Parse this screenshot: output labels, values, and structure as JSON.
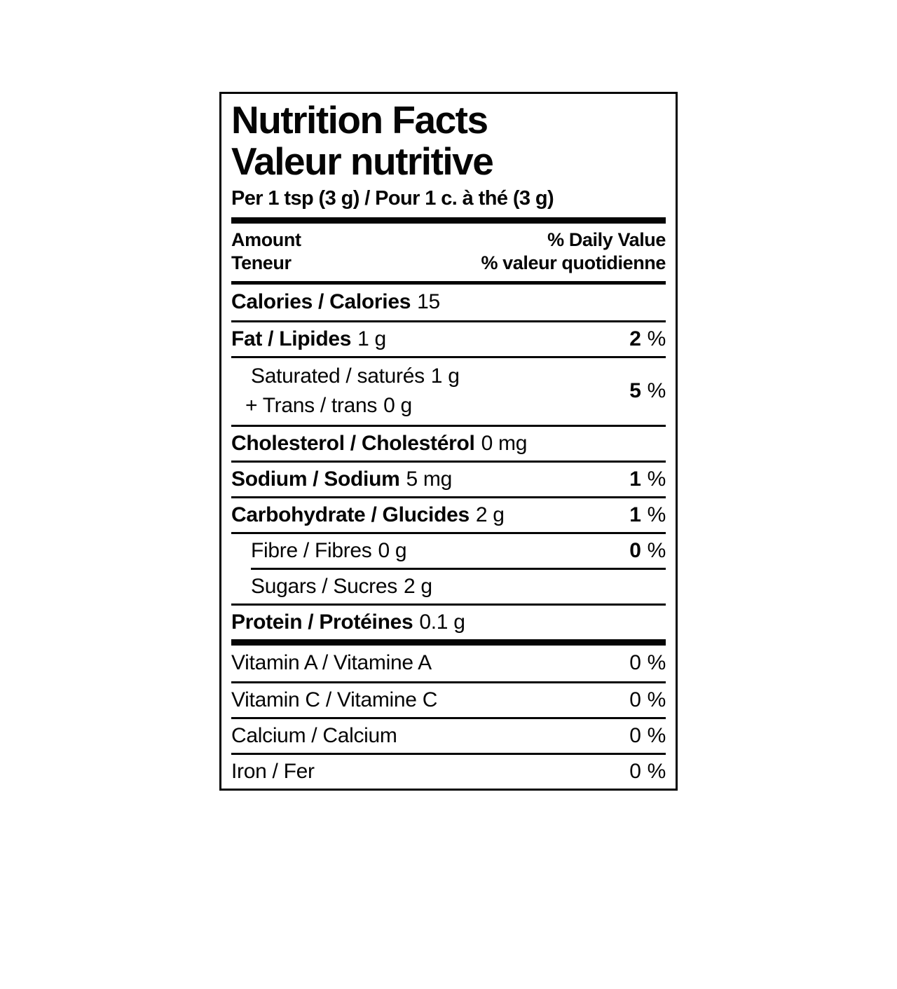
{
  "percent_sign": "%",
  "label": {
    "title_en": "Nutrition Facts",
    "title_fr": "Valeur nutritive",
    "serving": "Per 1 tsp (3 g) / Pour 1 c. à thé (3 g)",
    "columns": {
      "amount_en": "Amount",
      "amount_fr": "Teneur",
      "daily_value_en": "% Daily Value",
      "daily_value_fr": "% valeur quotidienne"
    },
    "main_rows": [
      {
        "label": "Calories / Calories",
        "value": "15",
        "dv": ""
      },
      {
        "label": "Fat / Lipides",
        "value": "1 g",
        "dv": "2"
      },
      {
        "label": "Saturated / saturés",
        "value": "1 g",
        "label2": "+ Trans / trans",
        "value2": "0 g",
        "dv": "5"
      },
      {
        "label": "Cholesterol / Cholestérol",
        "value": "0 mg",
        "dv": ""
      },
      {
        "label": "Sodium / Sodium",
        "value": "5 mg",
        "dv": "1"
      },
      {
        "label": "Carbohydrate / Glucides",
        "value": "2 g",
        "dv": "1"
      },
      {
        "label": "Fibre / Fibres",
        "value": "0 g",
        "dv": "0"
      },
      {
        "label": "Sugars / Sucres",
        "value": "2 g",
        "dv": ""
      },
      {
        "label": "Protein / Protéines",
        "value": "0.1 g",
        "dv": ""
      }
    ],
    "micro_rows": [
      {
        "label": "Vitamin A / Vitamine A",
        "dv": "0"
      },
      {
        "label": "Vitamin C / Vitamine C",
        "dv": "0"
      },
      {
        "label": "Calcium / Calcium",
        "dv": "0"
      },
      {
        "label": "Iron / Fer",
        "dv": "0"
      }
    ]
  }
}
